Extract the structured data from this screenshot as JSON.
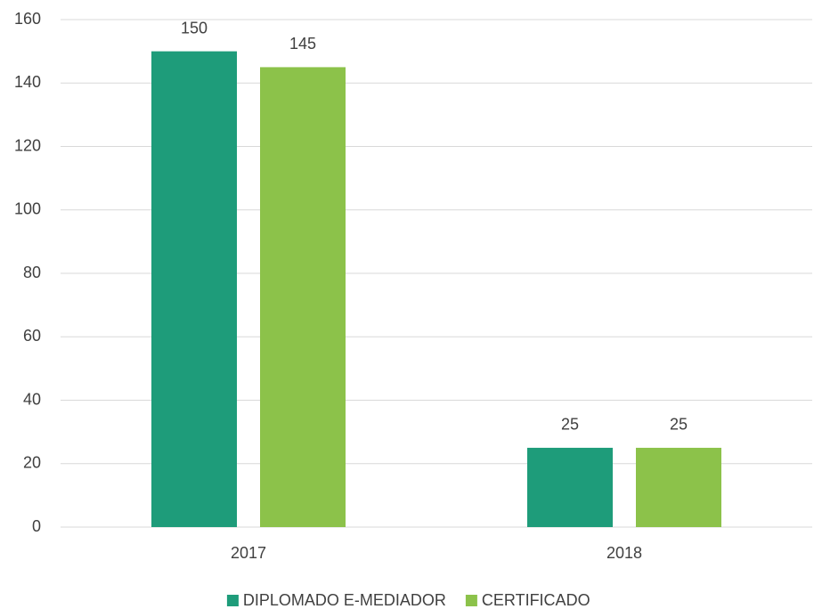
{
  "chart_data": {
    "type": "bar",
    "categories": [
      "2017",
      "2018"
    ],
    "series": [
      {
        "name": "DIPLOMADO E-MEDIADOR",
        "color": "#1e9c7a",
        "values": [
          150,
          25
        ]
      },
      {
        "name": "CERTIFICADO",
        "color": "#8cc24a",
        "values": [
          145,
          25
        ]
      }
    ],
    "ylim": [
      0,
      160
    ],
    "yticks": [
      0,
      20,
      40,
      60,
      80,
      100,
      120,
      140,
      160
    ],
    "grid": true,
    "legend": "bottom"
  }
}
